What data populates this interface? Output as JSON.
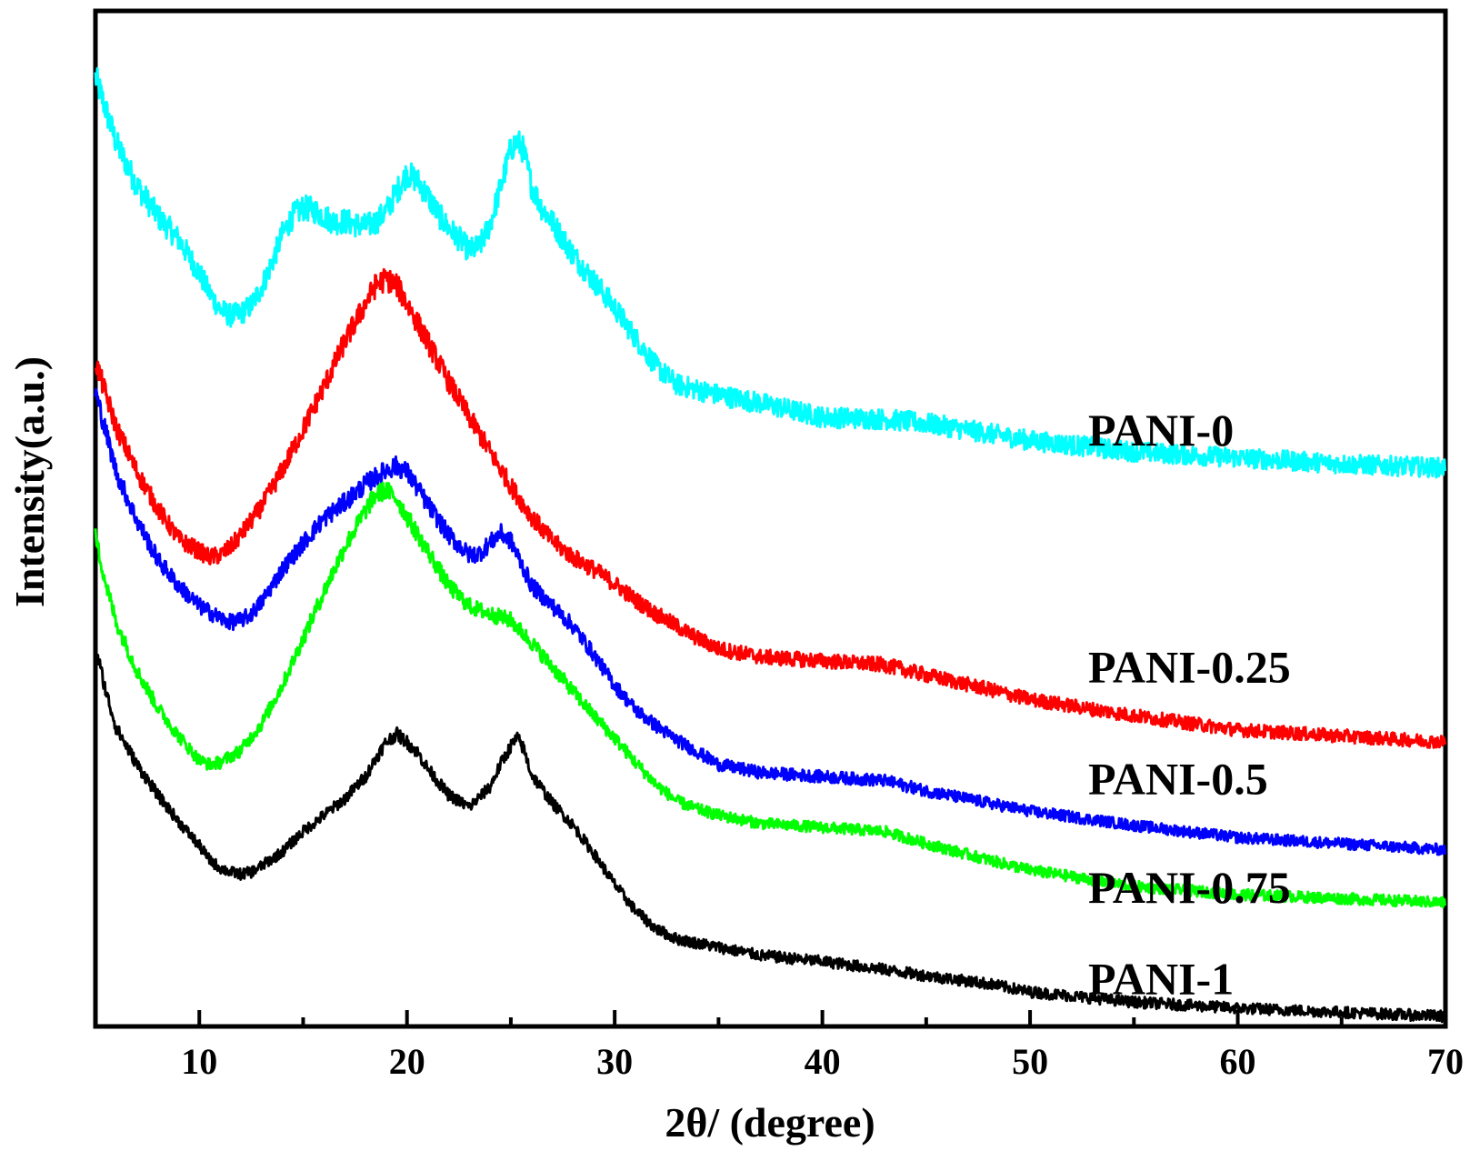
{
  "chart_data": {
    "type": "line",
    "title": "",
    "xlabel": "2θ/ (degree)",
    "ylabel": "Intensity(a.u.)",
    "xlim": [
      5,
      70
    ],
    "ylim": [
      0,
      100
    ],
    "x_ticks": [
      10,
      20,
      30,
      40,
      50,
      60,
      70
    ],
    "x_tick_labels": [
      "10",
      "20",
      "30",
      "40",
      "50",
      "60",
      "70"
    ],
    "x_minor_ticks": [
      15,
      25,
      35,
      45,
      55,
      65
    ],
    "y_ticks_shown": false,
    "grid": false,
    "legend": "inline labels at right",
    "series": [
      {
        "name": "PANI-0",
        "color": "#00ffff",
        "label_at": [
          52.8,
          58.8
        ],
        "x": [
          5,
          6,
          7,
          8,
          9,
          10,
          10.5,
          11,
          11.5,
          12,
          12.5,
          13,
          13.5,
          14,
          14.5,
          15,
          15.5,
          16,
          16.5,
          17,
          17.5,
          18,
          18.5,
          19,
          19.5,
          20,
          20.5,
          21,
          21.5,
          22,
          22.5,
          23,
          23.5,
          24,
          24.5,
          25,
          25.3,
          25.6,
          26,
          26.5,
          27,
          27.5,
          28,
          29,
          30,
          31,
          32,
          33,
          35,
          37,
          40,
          43,
          45,
          48,
          50,
          55,
          60,
          65,
          70
        ],
        "y": [
          93.5,
          87.0,
          82.8,
          79.8,
          77.5,
          74.2,
          72.2,
          70.6,
          70.0,
          70.2,
          71.0,
          72.8,
          75.2,
          78.0,
          79.8,
          80.6,
          80.4,
          79.8,
          79.2,
          79.3,
          79.0,
          78.8,
          79.2,
          80.3,
          82.2,
          84.0,
          83.3,
          81.8,
          80.0,
          78.6,
          77.6,
          76.4,
          76.8,
          79.0,
          82.6,
          86.4,
          87.2,
          86.3,
          82.8,
          80.6,
          79.2,
          77.6,
          76.0,
          73.4,
          70.8,
          67.8,
          65.0,
          63.2,
          62.2,
          61.4,
          60.0,
          59.8,
          59.4,
          58.4,
          57.7,
          56.6,
          56.0,
          55.4,
          55.0
        ]
      },
      {
        "name": "PANI-0.25",
        "color": "#ff0000",
        "label_at": [
          52.8,
          35.5
        ],
        "x": [
          5,
          6,
          7,
          8,
          9,
          10,
          10.5,
          11,
          11.5,
          12,
          13,
          14,
          15,
          16,
          17,
          18,
          18.5,
          19,
          19.5,
          20,
          21,
          22,
          23,
          24,
          25,
          26,
          27,
          28,
          29,
          30,
          31,
          32,
          33,
          34,
          35,
          37,
          40,
          43,
          45,
          48,
          50,
          55,
          60,
          65,
          70
        ],
        "y": [
          65.5,
          59.0,
          54.6,
          51.0,
          48.0,
          46.8,
          46.2,
          46.4,
          47.2,
          48.4,
          51.2,
          54.8,
          58.8,
          63.0,
          67.4,
          71.2,
          73.0,
          73.6,
          73.0,
          71.2,
          67.4,
          63.5,
          60.0,
          56.6,
          53.2,
          50.2,
          47.8,
          46.2,
          45.0,
          43.6,
          42.0,
          40.6,
          39.4,
          38.2,
          37.2,
          36.4,
          36.0,
          35.6,
          34.6,
          33.2,
          32.2,
          30.6,
          29.2,
          28.6,
          28.0
        ]
      },
      {
        "name": "PANI-0.5",
        "color": "#0000ff",
        "label_at": [
          52.8,
          24.5
        ],
        "x": [
          5,
          6,
          7,
          8,
          9,
          10,
          11,
          11.5,
          12,
          12.5,
          13,
          14,
          15,
          16,
          17,
          18,
          19,
          19.5,
          20,
          21,
          22,
          23,
          23.5,
          24,
          24.5,
          25,
          25.5,
          26,
          27,
          28,
          29,
          30,
          31,
          32,
          33,
          34,
          35,
          37,
          40,
          43,
          45,
          48,
          50,
          55,
          60,
          65,
          70
        ],
        "y": [
          62.5,
          54.6,
          49.8,
          46.0,
          43.4,
          41.4,
          40.2,
          39.8,
          40.0,
          40.6,
          41.8,
          45.0,
          47.6,
          50.0,
          51.6,
          53.4,
          54.8,
          55.2,
          54.6,
          51.4,
          48.4,
          46.4,
          46.6,
          47.6,
          48.6,
          47.8,
          45.6,
          43.4,
          41.4,
          39.4,
          36.6,
          33.6,
          31.2,
          29.6,
          28.2,
          27.0,
          25.8,
          25.0,
          24.6,
          24.2,
          23.2,
          22.0,
          21.2,
          19.8,
          18.6,
          18.0,
          17.4
        ]
      },
      {
        "name": "PANI-0.75",
        "color": "#00ff00",
        "label_at": [
          52.8,
          13.8
        ],
        "x": [
          5,
          5.5,
          6,
          7,
          8,
          9,
          10,
          10.5,
          11,
          12,
          13,
          14,
          15,
          16,
          17,
          18,
          18.5,
          19,
          19.5,
          20,
          21,
          22,
          23,
          24,
          25,
          26,
          27,
          28,
          29,
          30,
          31,
          32,
          33,
          34,
          35,
          37,
          40,
          43,
          45,
          48,
          50,
          55,
          60,
          65,
          70
        ],
        "y": [
          48.2,
          43.6,
          39.8,
          35.0,
          31.4,
          28.6,
          26.2,
          25.8,
          26.0,
          27.2,
          29.8,
          33.6,
          38.2,
          42.8,
          47.2,
          50.8,
          52.4,
          52.8,
          52.0,
          50.2,
          46.8,
          43.4,
          41.4,
          40.6,
          40.0,
          37.8,
          35.4,
          33.0,
          30.6,
          28.4,
          26.0,
          23.8,
          22.2,
          21.4,
          20.8,
          20.0,
          19.6,
          19.2,
          18.0,
          16.4,
          15.4,
          13.8,
          13.0,
          12.6,
          12.2
        ]
      },
      {
        "name": "PANI-1",
        "color": "#000000",
        "label_at": [
          52.8,
          4.8
        ],
        "x": [
          5,
          5.5,
          6,
          7,
          8,
          9,
          10,
          10.5,
          11,
          11.5,
          12,
          12.5,
          13,
          14,
          15,
          16,
          17,
          18,
          18.5,
          19,
          19.5,
          20,
          20.5,
          21,
          22,
          23,
          24,
          24.5,
          25,
          25.3,
          25.6,
          26,
          27,
          28,
          29,
          30,
          31,
          32,
          33,
          35,
          37,
          40,
          43,
          45,
          48,
          50,
          55,
          60,
          65,
          70
        ],
        "y": [
          37.4,
          33.0,
          29.4,
          25.8,
          22.8,
          20.2,
          17.8,
          16.4,
          15.6,
          15.2,
          15.0,
          15.2,
          15.8,
          17.2,
          19.2,
          20.8,
          22.4,
          24.6,
          26.4,
          28.0,
          28.8,
          28.0,
          27.0,
          25.4,
          22.8,
          21.6,
          23.6,
          25.8,
          27.6,
          28.4,
          27.4,
          24.8,
          22.0,
          19.8,
          17.0,
          14.0,
          11.4,
          9.6,
          8.6,
          7.8,
          7.0,
          6.4,
          5.6,
          5.0,
          4.2,
          3.4,
          2.4,
          1.8,
          1.4,
          1.0
        ]
      }
    ]
  }
}
